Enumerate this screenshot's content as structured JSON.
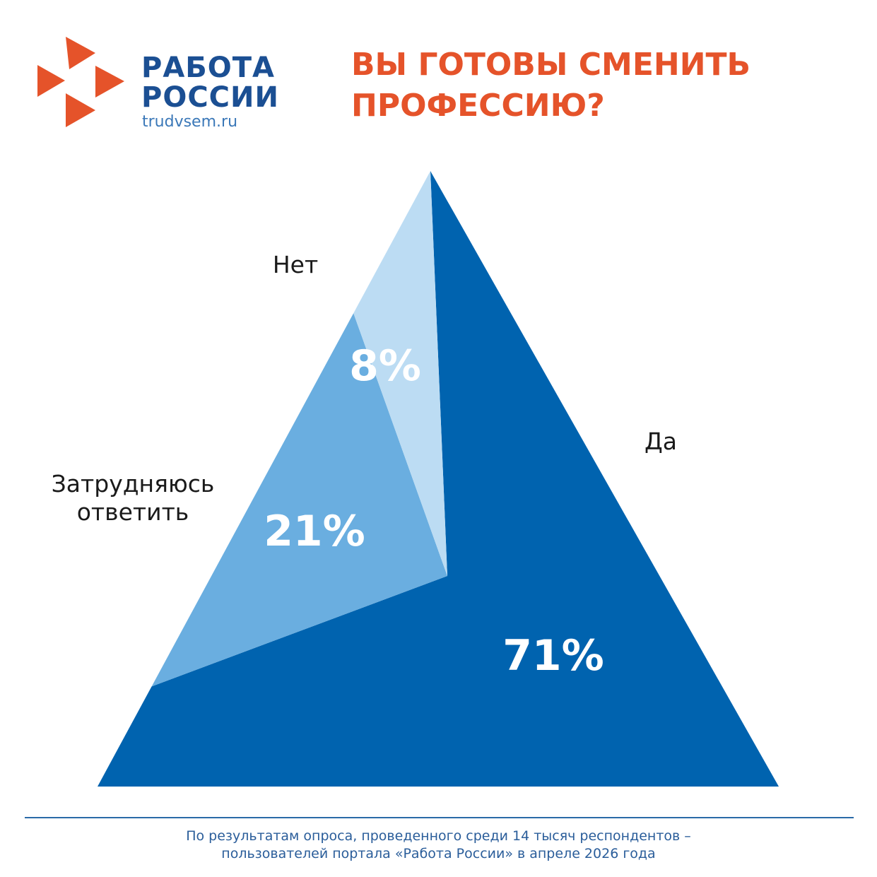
{
  "logo": {
    "line1": "РАБОТА",
    "line2": "РОССИИ",
    "url": "trudvsem.ru"
  },
  "header": {
    "title_lines": [
      "ВЫ ГОТОВЫ СМЕНИТЬ",
      "ПРОФЕССИЮ?"
    ]
  },
  "chart_data": {
    "type": "pie",
    "categories": [
      "Да",
      "Затрудняюсь ответить",
      "Нет"
    ],
    "values": [
      71,
      21,
      8
    ],
    "value_labels": [
      "71%",
      "21%",
      "8%"
    ],
    "colors": [
      "#0063af",
      "#6aaee0",
      "#bcdcf3"
    ]
  },
  "footer": {
    "note_lines": [
      "По результатам опроса, проведенного среди 14 тысяч респондентов –",
      "пользователей портала «Работа России» в апреле 2026 года"
    ]
  }
}
